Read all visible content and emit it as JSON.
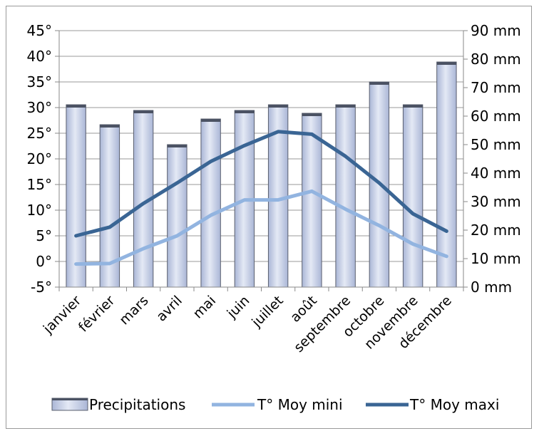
{
  "chart_data": {
    "type": "bar",
    "categories": [
      "janvier",
      "février",
      "mars",
      "avril",
      "mai",
      "juin",
      "juillet",
      "août",
      "septembre",
      "octobre",
      "novembre",
      "décembre"
    ],
    "series": [
      {
        "name": "Precipitations",
        "type": "bar",
        "axis": "right",
        "color": "#c2cce6",
        "values": [
          64,
          57,
          62,
          50,
          59,
          62,
          64,
          61,
          64,
          72,
          64,
          79
        ]
      },
      {
        "name": "T° Moy mini",
        "type": "line",
        "axis": "left",
        "color": "#92b4e0",
        "values": [
          -0.5,
          -0.4,
          2.5,
          5,
          9,
          12,
          12,
          13.7,
          10.2,
          7,
          3.4,
          1
        ]
      },
      {
        "name": "T° Moy maxi",
        "type": "line",
        "axis": "left",
        "color": "#3a6594",
        "values": [
          5,
          6.7,
          11.3,
          15.3,
          19.5,
          22.6,
          25.3,
          24.8,
          20.5,
          15.3,
          9.3,
          5.9
        ]
      }
    ],
    "y_left": {
      "min": -5,
      "max": 45,
      "step": 5,
      "tick_labels": [
        "-5°",
        "0°",
        "5°",
        "10°",
        "15°",
        "20°",
        "25°",
        "30°",
        "35°",
        "40°",
        "45°"
      ]
    },
    "y_right": {
      "min": 0,
      "max": 90,
      "step": 10,
      "tick_labels": [
        "0 mm",
        "10 mm",
        "20 mm",
        "30 mm",
        "40 mm",
        "50 mm",
        "60 mm",
        "70 mm",
        "80 mm",
        "90 mm"
      ]
    },
    "grid": true,
    "legend": "bottom"
  }
}
